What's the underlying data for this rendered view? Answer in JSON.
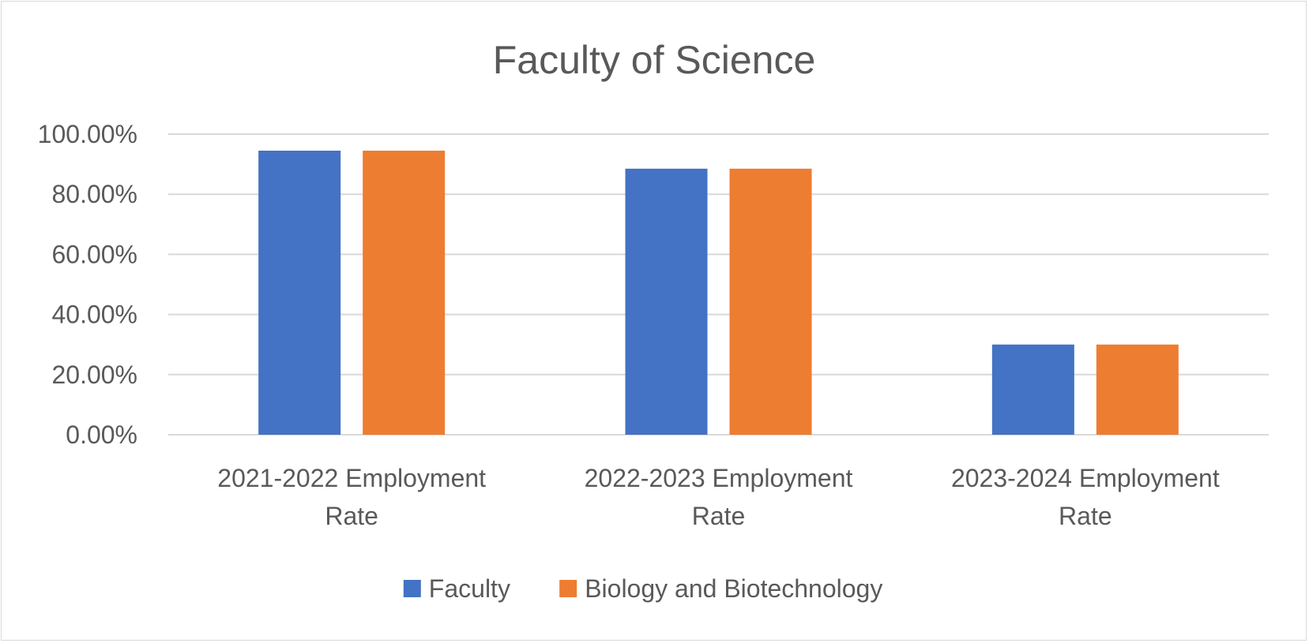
{
  "chart_data": {
    "type": "bar",
    "title": "Faculty of Science",
    "xlabel": "",
    "ylabel": "",
    "categories": [
      [
        "2021-2022 Employment",
        "Rate"
      ],
      [
        "2022-2023 Employment",
        "Rate"
      ],
      [
        "2023-2024 Employment",
        "Rate"
      ]
    ],
    "series": [
      {
        "name": "Faculty",
        "color": "#4472c4",
        "values": [
          0.945,
          0.885,
          0.3
        ]
      },
      {
        "name": "Biology and Biotechnology",
        "color": "#ed7d31",
        "values": [
          0.945,
          0.885,
          0.3
        ]
      }
    ],
    "ylim": [
      0,
      1
    ],
    "yticks": [
      "0.00%",
      "20.00%",
      "40.00%",
      "60.00%",
      "80.00%",
      "100.00%"
    ],
    "grid": true,
    "legend_position": "bottom",
    "gridline_color": "#d9d9d9",
    "text_color": "#595959"
  }
}
